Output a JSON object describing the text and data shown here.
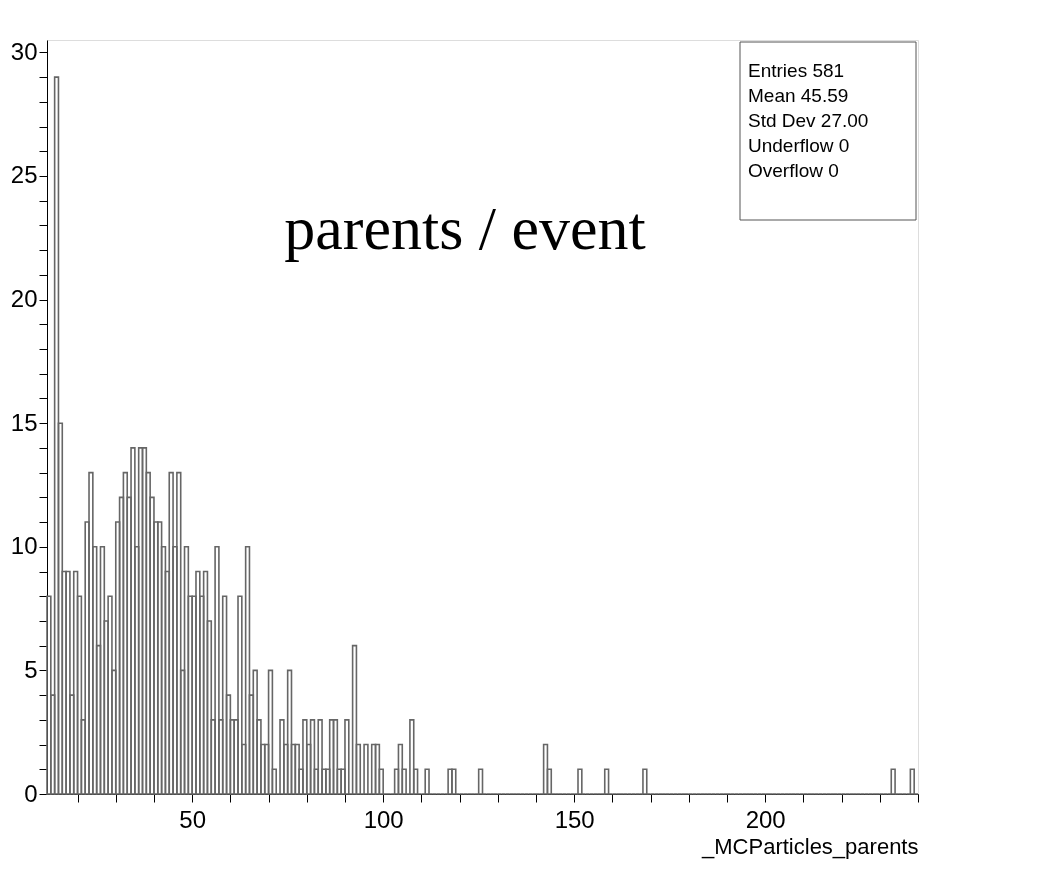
{
  "chart_data": {
    "type": "histogram",
    "title": "parents / event",
    "xlabel": "_MCParticles_parents",
    "annotations": [
      "Entries 581",
      "Mean 45.59",
      "Std Dev 27.00",
      "Underflow 0",
      "Overflow 0"
    ],
    "bins": [
      12,
      13,
      14,
      15,
      16,
      17,
      18,
      19,
      20,
      21,
      22,
      23,
      24,
      25,
      26,
      27,
      28,
      29,
      30,
      31,
      32,
      33,
      34,
      35,
      36,
      37,
      38,
      39,
      40,
      41,
      42,
      43,
      44,
      45,
      46,
      47,
      48,
      49,
      50,
      51,
      52,
      53,
      54,
      55,
      56,
      57,
      58,
      59,
      60,
      61,
      62,
      63,
      64,
      65,
      66,
      67,
      68,
      69,
      70,
      71,
      72,
      73,
      74,
      75,
      76,
      77,
      78,
      79,
      80,
      81,
      82,
      83,
      84,
      85,
      86,
      87,
      88,
      89,
      90,
      91,
      92,
      93,
      94,
      95,
      96,
      97,
      98,
      99,
      100,
      101,
      102,
      103,
      104,
      105,
      106,
      107,
      108,
      109,
      110,
      111,
      112,
      113,
      114,
      115,
      116,
      117,
      118,
      119,
      120,
      121,
      122,
      123,
      124,
      125,
      126,
      127,
      128,
      129,
      130,
      131,
      132,
      133,
      134,
      135,
      136,
      137,
      138,
      139,
      140,
      141,
      142,
      143,
      144,
      145,
      146,
      147,
      148,
      149,
      150,
      151,
      152,
      153,
      154,
      155,
      156,
      157,
      158,
      159,
      160,
      161,
      162,
      163,
      164,
      165,
      166,
      167,
      168,
      169,
      170,
      171,
      172,
      173,
      174,
      175,
      176,
      177,
      178,
      179,
      180,
      181,
      182,
      183,
      184,
      185,
      186,
      187,
      188,
      189,
      190,
      191,
      192,
      193,
      194,
      195,
      196,
      197,
      198,
      199,
      200,
      201,
      202,
      203,
      204,
      205,
      206,
      207,
      208,
      209,
      210,
      211,
      212,
      213,
      214,
      215,
      216,
      217,
      218,
      219,
      220,
      221,
      222,
      223,
      224,
      225,
      226,
      227,
      228,
      229,
      230,
      231,
      232,
      233,
      234,
      235,
      236,
      237,
      238,
      239,
      240
    ],
    "values": [
      8,
      4,
      29,
      15,
      9,
      9,
      4,
      9,
      8,
      3,
      11,
      13,
      10,
      6,
      10,
      7,
      8,
      5,
      11,
      12,
      13,
      12,
      14,
      10,
      14,
      14,
      13,
      12,
      11,
      11,
      10,
      9,
      13,
      10,
      13,
      5,
      10,
      8,
      8,
      9,
      8,
      9,
      7,
      3,
      10,
      3,
      8,
      4,
      3,
      3,
      8,
      2,
      10,
      4,
      5,
      3,
      2,
      2,
      5,
      1,
      0,
      3,
      2,
      5,
      2,
      2,
      1,
      3,
      2,
      3,
      1,
      3,
      1,
      1,
      3,
      3,
      1,
      1,
      3,
      0,
      6,
      2,
      0,
      2,
      0,
      2,
      2,
      1,
      0,
      0,
      0,
      1,
      2,
      1,
      0,
      3,
      1,
      0,
      0,
      1,
      0,
      0,
      0,
      0,
      0,
      1,
      1,
      0,
      0,
      0,
      0,
      0,
      0,
      1,
      0,
      0,
      0,
      0,
      0,
      0,
      0,
      0,
      0,
      0,
      0,
      0,
      0,
      0,
      0,
      0,
      2,
      1,
      0,
      0,
      0,
      0,
      0,
      0,
      0,
      1,
      0,
      0,
      0,
      0,
      0,
      0,
      1,
      0,
      0,
      0,
      0,
      0,
      0,
      0,
      0,
      0,
      1,
      0,
      0,
      0,
      0,
      0,
      0,
      0,
      0,
      0,
      0,
      0,
      0,
      0,
      0,
      0,
      0,
      0,
      0,
      0,
      0,
      0,
      0,
      0,
      0,
      0,
      0,
      0,
      0,
      0,
      0,
      0,
      0,
      0,
      0,
      0,
      0,
      0,
      0,
      0,
      0,
      0,
      0,
      0,
      0,
      0,
      0,
      0,
      0,
      0,
      0,
      0,
      0,
      0,
      0,
      0,
      0,
      0,
      0,
      0,
      0,
      0,
      0,
      0,
      0,
      1,
      0,
      0,
      0,
      0,
      1,
      0
    ],
    "color": "#666666",
    "xlim": [
      12,
      240
    ],
    "xticks": [
      {
        "value": 20,
        "label": null
      },
      {
        "value": 30,
        "label": null
      },
      {
        "value": 40,
        "label": null
      },
      50,
      {
        "value": 60,
        "label": null
      },
      {
        "value": 70,
        "label": null
      },
      {
        "value": 80,
        "label": null
      },
      {
        "value": 90,
        "label": null
      },
      100,
      {
        "value": 110,
        "label": null
      },
      {
        "value": 120,
        "label": null
      },
      {
        "value": 130,
        "label": null
      },
      {
        "value": 140,
        "label": null
      },
      150,
      {
        "value": 160,
        "label": null
      },
      {
        "value": 170,
        "label": null
      },
      {
        "value": 180,
        "label": null
      },
      {
        "value": 190,
        "label": null
      },
      200,
      {
        "value": 210,
        "label": null
      },
      {
        "value": 220,
        "label": null
      },
      {
        "value": 230,
        "label": null
      },
      {
        "value": 240,
        "label": null
      }
    ],
    "ylim": [
      0,
      30.5
    ],
    "yticks": [
      0,
      {
        "value": 1,
        "label": null
      },
      {
        "value": 2,
        "label": null
      },
      {
        "value": 3,
        "label": null
      },
      {
        "value": 4,
        "label": null
      },
      5,
      {
        "value": 6,
        "label": null
      },
      {
        "value": 7,
        "label": null
      },
      {
        "value": 8,
        "label": null
      },
      {
        "value": 9,
        "label": null
      },
      10,
      {
        "value": 11,
        "label": null
      },
      {
        "value": 12,
        "label": null
      },
      {
        "value": 13,
        "label": null
      },
      {
        "value": 14,
        "label": null
      },
      15,
      {
        "value": 16,
        "label": null
      },
      {
        "value": 17,
        "label": null
      },
      {
        "value": 18,
        "label": null
      },
      {
        "value": 19,
        "label": null
      },
      20,
      {
        "value": 21,
        "label": null
      },
      {
        "value": 22,
        "label": null
      },
      {
        "value": 23,
        "label": null
      },
      {
        "value": 24,
        "label": null
      },
      25,
      {
        "value": 26,
        "label": null
      },
      {
        "value": 27,
        "label": null
      },
      {
        "value": 28,
        "label": null
      },
      {
        "value": 29,
        "label": null
      },
      30
    ],
    "grid": false
  }
}
